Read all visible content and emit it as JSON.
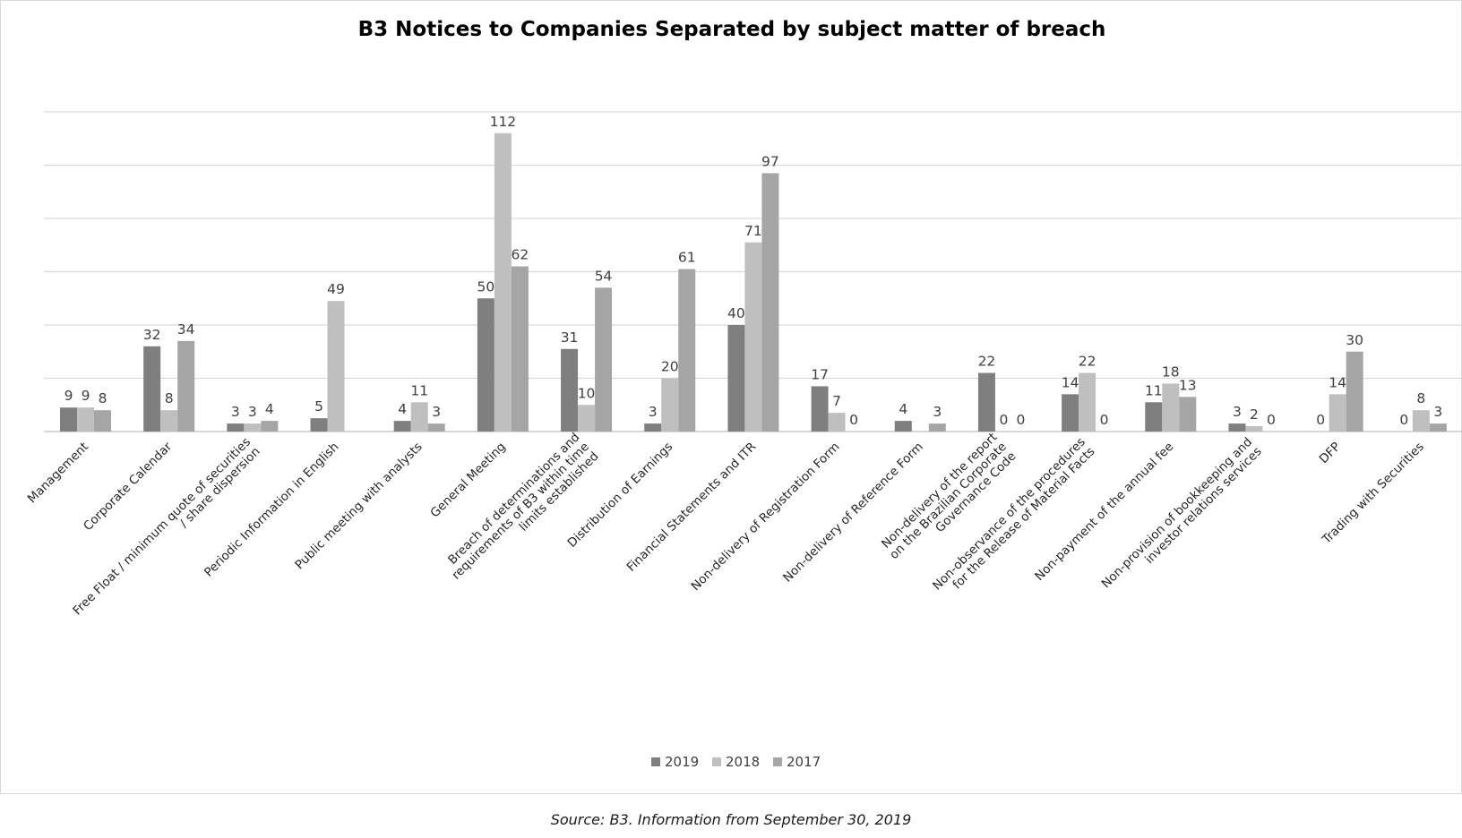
{
  "source_note": "Source: B3. Information from September 30, 2019",
  "colors": {
    "2019": "#7f7f7f",
    "2018": "#bfbfbf",
    "2017": "#a5a5a5",
    "grid": "#d9d9d9"
  },
  "chart_data": {
    "type": "bar",
    "title": "B3 Notices to Companies Separated by subject matter of breach",
    "xlabel": "",
    "ylabel": "",
    "ylim": [
      0,
      120
    ],
    "grid": true,
    "legend": "bottom",
    "categories": [
      [
        "Management"
      ],
      [
        "Corporate Calendar"
      ],
      [
        "Free Float / minimum quote of securities",
        "/ share dispersion"
      ],
      [
        "Periodic Information in English"
      ],
      [
        "Public meeting with analysts"
      ],
      [
        "General Meeting"
      ],
      [
        "Breach of determinations and",
        "requirements of B3 within time",
        "limits established"
      ],
      [
        "Distribution of Earnings"
      ],
      [
        "Financial Statements and ITR"
      ],
      [
        "Non-delivery of Registration Form"
      ],
      [
        "Non-delivery of Reference Form"
      ],
      [
        "Non-delivery of the report",
        "on the Brazilian Corporate",
        "Governance Code"
      ],
      [
        "Non-observance of the procedures",
        "for the Release of Material Facts"
      ],
      [
        "Non-payment of the annual fee"
      ],
      [
        "Non-provision of bookkeeping and",
        "investor relations services"
      ],
      [
        "DFP"
      ],
      [
        "Trading with Securities"
      ]
    ],
    "series": [
      {
        "name": "2019",
        "values": [
          9,
          32,
          3,
          5,
          4,
          50,
          31,
          3,
          40,
          17,
          4,
          22,
          14,
          11,
          3,
          0,
          0
        ],
        "labels": [
          "9",
          "32",
          "3",
          "5",
          "4",
          "50",
          "31",
          "3",
          "40",
          "17",
          "4",
          "22",
          "14",
          "11",
          "3",
          "0",
          "0"
        ]
      },
      {
        "name": "2018",
        "values": [
          9,
          8,
          3,
          49,
          11,
          112,
          10,
          20,
          71,
          7,
          0,
          0,
          22,
          18,
          2,
          14,
          8
        ],
        "labels": [
          "9",
          "8",
          "3",
          "49",
          "11",
          "112",
          "10",
          "20",
          "71",
          "7",
          "",
          "0",
          "22",
          "18",
          "2",
          "14",
          "8"
        ]
      },
      {
        "name": "2017",
        "values": [
          8,
          34,
          4,
          0,
          3,
          62,
          54,
          61,
          97,
          0,
          3,
          0,
          0,
          13,
          0,
          30,
          3
        ],
        "labels": [
          "8",
          "34",
          "4",
          "",
          "3",
          "62",
          "54",
          "61",
          "97",
          "0",
          "3",
          "0",
          "0",
          "13",
          "0",
          "30",
          "3"
        ]
      }
    ]
  }
}
